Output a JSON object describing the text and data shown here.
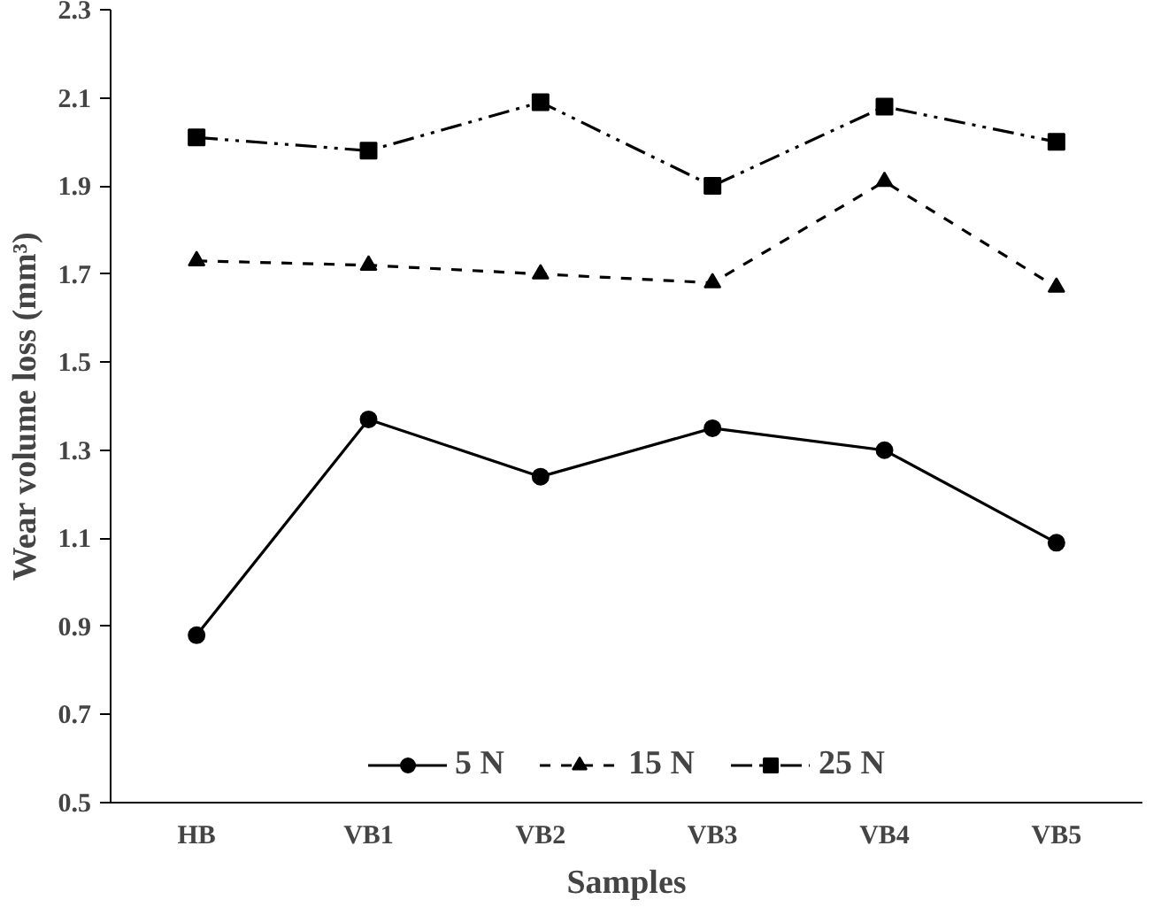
{
  "chart_data": {
    "type": "line",
    "xlabel": "Samples",
    "ylabel": "Wear volume loss (mm³)",
    "categories": [
      "HB",
      "VB1",
      "VB2",
      "VB3",
      "VB4",
      "VB5"
    ],
    "ylim": [
      0.5,
      2.3
    ],
    "yticks": [
      0.5,
      0.7,
      0.9,
      1.1,
      1.3,
      1.5,
      1.7,
      1.9,
      2.1,
      2.3
    ],
    "grid": false,
    "legend": "bottom",
    "series": [
      {
        "name": "5 N",
        "color": "#000000",
        "marker": "circle",
        "line_style": "solid",
        "values": [
          0.88,
          1.37,
          1.24,
          1.35,
          1.3,
          1.09
        ]
      },
      {
        "name": "15 N",
        "color": "#000000",
        "marker": "triangle",
        "line_style": "dashed",
        "values": [
          1.73,
          1.72,
          1.7,
          1.68,
          1.91,
          1.67
        ]
      },
      {
        "name": "25 N",
        "color": "#000000",
        "marker": "square",
        "line_style": "dashdotdot",
        "values": [
          2.01,
          1.98,
          2.09,
          1.9,
          2.08,
          2.0
        ]
      }
    ]
  }
}
